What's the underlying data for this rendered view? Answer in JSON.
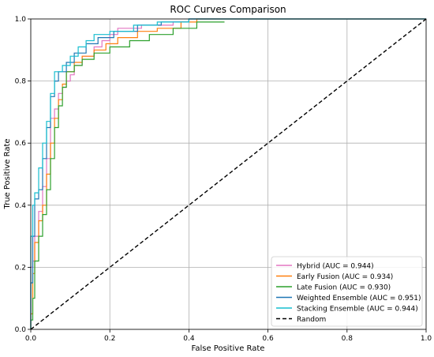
{
  "chart_data": {
    "type": "line",
    "title": "ROC Curves Comparison",
    "xlabel": "False Positive Rate",
    "ylabel": "True Positive Rate",
    "xlim": [
      0,
      1
    ],
    "ylim": [
      0,
      1
    ],
    "xticks": [
      "0.0",
      "0.2",
      "0.4",
      "0.6",
      "0.8",
      "1.0"
    ],
    "yticks": [
      "0.0",
      "0.2",
      "0.4",
      "0.6",
      "0.8",
      "1.0"
    ],
    "grid": true,
    "legend_position": "lower-right",
    "series": [
      {
        "name": "Hybrid (AUC = 0.944)",
        "color": "#e377c2",
        "points": [
          [
            0,
            0
          ],
          [
            0,
            0.2
          ],
          [
            0.005,
            0.2
          ],
          [
            0.005,
            0.22
          ],
          [
            0.01,
            0.22
          ],
          [
            0.01,
            0.3
          ],
          [
            0.02,
            0.3
          ],
          [
            0.02,
            0.38
          ],
          [
            0.03,
            0.38
          ],
          [
            0.03,
            0.46
          ],
          [
            0.04,
            0.46
          ],
          [
            0.04,
            0.55
          ],
          [
            0.05,
            0.55
          ],
          [
            0.05,
            0.68
          ],
          [
            0.06,
            0.68
          ],
          [
            0.06,
            0.71
          ],
          [
            0.07,
            0.71
          ],
          [
            0.07,
            0.76
          ],
          [
            0.08,
            0.76
          ],
          [
            0.08,
            0.78
          ],
          [
            0.09,
            0.78
          ],
          [
            0.09,
            0.8
          ],
          [
            0.1,
            0.8
          ],
          [
            0.1,
            0.82
          ],
          [
            0.11,
            0.82
          ],
          [
            0.11,
            0.85
          ],
          [
            0.13,
            0.85
          ],
          [
            0.13,
            0.88
          ],
          [
            0.16,
            0.88
          ],
          [
            0.16,
            0.91
          ],
          [
            0.18,
            0.91
          ],
          [
            0.18,
            0.93
          ],
          [
            0.2,
            0.93
          ],
          [
            0.2,
            0.95
          ],
          [
            0.22,
            0.95
          ],
          [
            0.22,
            0.97
          ],
          [
            0.28,
            0.97
          ],
          [
            0.28,
            0.98
          ],
          [
            0.36,
            0.98
          ],
          [
            0.36,
            0.99
          ],
          [
            0.4,
            0.99
          ],
          [
            0.4,
            1.0
          ],
          [
            1.0,
            1.0
          ]
        ]
      },
      {
        "name": "Early Fusion (AUC = 0.934)",
        "color": "#ff7f0e",
        "points": [
          [
            0,
            0
          ],
          [
            0,
            0.05
          ],
          [
            0.005,
            0.05
          ],
          [
            0.005,
            0.18
          ],
          [
            0.01,
            0.18
          ],
          [
            0.01,
            0.28
          ],
          [
            0.02,
            0.28
          ],
          [
            0.02,
            0.35
          ],
          [
            0.03,
            0.35
          ],
          [
            0.03,
            0.4
          ],
          [
            0.04,
            0.4
          ],
          [
            0.04,
            0.5
          ],
          [
            0.05,
            0.5
          ],
          [
            0.05,
            0.6
          ],
          [
            0.06,
            0.6
          ],
          [
            0.06,
            0.68
          ],
          [
            0.07,
            0.68
          ],
          [
            0.07,
            0.74
          ],
          [
            0.08,
            0.74
          ],
          [
            0.08,
            0.79
          ],
          [
            0.09,
            0.79
          ],
          [
            0.09,
            0.83
          ],
          [
            0.11,
            0.83
          ],
          [
            0.11,
            0.86
          ],
          [
            0.13,
            0.86
          ],
          [
            0.13,
            0.88
          ],
          [
            0.16,
            0.88
          ],
          [
            0.16,
            0.9
          ],
          [
            0.19,
            0.9
          ],
          [
            0.19,
            0.92
          ],
          [
            0.22,
            0.92
          ],
          [
            0.22,
            0.94
          ],
          [
            0.27,
            0.94
          ],
          [
            0.27,
            0.96
          ],
          [
            0.32,
            0.96
          ],
          [
            0.32,
            0.97
          ],
          [
            0.38,
            0.97
          ],
          [
            0.38,
            0.99
          ],
          [
            0.42,
            0.99
          ],
          [
            0.42,
            1.0
          ],
          [
            1.0,
            1.0
          ]
        ]
      },
      {
        "name": "Late Fusion (AUC = 0.930)",
        "color": "#2ca02c",
        "points": [
          [
            0,
            0
          ],
          [
            0,
            0.03
          ],
          [
            0.005,
            0.03
          ],
          [
            0.005,
            0.1
          ],
          [
            0.01,
            0.1
          ],
          [
            0.01,
            0.22
          ],
          [
            0.02,
            0.22
          ],
          [
            0.02,
            0.3
          ],
          [
            0.03,
            0.3
          ],
          [
            0.03,
            0.37
          ],
          [
            0.04,
            0.37
          ],
          [
            0.04,
            0.45
          ],
          [
            0.05,
            0.45
          ],
          [
            0.05,
            0.55
          ],
          [
            0.06,
            0.55
          ],
          [
            0.06,
            0.65
          ],
          [
            0.07,
            0.65
          ],
          [
            0.07,
            0.72
          ],
          [
            0.08,
            0.72
          ],
          [
            0.08,
            0.78
          ],
          [
            0.09,
            0.78
          ],
          [
            0.09,
            0.83
          ],
          [
            0.11,
            0.83
          ],
          [
            0.11,
            0.85
          ],
          [
            0.13,
            0.85
          ],
          [
            0.13,
            0.87
          ],
          [
            0.16,
            0.87
          ],
          [
            0.16,
            0.89
          ],
          [
            0.2,
            0.89
          ],
          [
            0.2,
            0.91
          ],
          [
            0.25,
            0.91
          ],
          [
            0.25,
            0.93
          ],
          [
            0.3,
            0.93
          ],
          [
            0.3,
            0.95
          ],
          [
            0.36,
            0.95
          ],
          [
            0.36,
            0.97
          ],
          [
            0.42,
            0.97
          ],
          [
            0.42,
            0.99
          ],
          [
            0.49,
            0.99
          ]
        ]
      },
      {
        "name": "Weighted Ensemble (AUC = 0.951)",
        "color": "#1f77b4",
        "points": [
          [
            0,
            0
          ],
          [
            0,
            0.15
          ],
          [
            0.005,
            0.15
          ],
          [
            0.005,
            0.3
          ],
          [
            0.01,
            0.3
          ],
          [
            0.01,
            0.42
          ],
          [
            0.02,
            0.42
          ],
          [
            0.02,
            0.45
          ],
          [
            0.03,
            0.45
          ],
          [
            0.03,
            0.55
          ],
          [
            0.04,
            0.55
          ],
          [
            0.04,
            0.65
          ],
          [
            0.05,
            0.65
          ],
          [
            0.05,
            0.75
          ],
          [
            0.06,
            0.75
          ],
          [
            0.06,
            0.8
          ],
          [
            0.07,
            0.8
          ],
          [
            0.07,
            0.83
          ],
          [
            0.09,
            0.83
          ],
          [
            0.09,
            0.86
          ],
          [
            0.11,
            0.86
          ],
          [
            0.11,
            0.89
          ],
          [
            0.14,
            0.89
          ],
          [
            0.14,
            0.92
          ],
          [
            0.17,
            0.92
          ],
          [
            0.17,
            0.94
          ],
          [
            0.21,
            0.94
          ],
          [
            0.21,
            0.96
          ],
          [
            0.27,
            0.96
          ],
          [
            0.27,
            0.98
          ],
          [
            0.33,
            0.98
          ],
          [
            0.33,
            0.99
          ],
          [
            0.4,
            0.99
          ],
          [
            0.4,
            1.0
          ],
          [
            1.0,
            1.0
          ]
        ]
      },
      {
        "name": "Stacking Ensemble (AUC = 0.944)",
        "color": "#17becf",
        "points": [
          [
            0,
            0
          ],
          [
            0,
            0.3
          ],
          [
            0.005,
            0.3
          ],
          [
            0.005,
            0.4
          ],
          [
            0.01,
            0.4
          ],
          [
            0.01,
            0.44
          ],
          [
            0.02,
            0.44
          ],
          [
            0.02,
            0.52
          ],
          [
            0.03,
            0.52
          ],
          [
            0.03,
            0.6
          ],
          [
            0.04,
            0.6
          ],
          [
            0.04,
            0.67
          ],
          [
            0.05,
            0.67
          ],
          [
            0.05,
            0.76
          ],
          [
            0.06,
            0.76
          ],
          [
            0.06,
            0.83
          ],
          [
            0.08,
            0.83
          ],
          [
            0.08,
            0.85
          ],
          [
            0.1,
            0.85
          ],
          [
            0.1,
            0.88
          ],
          [
            0.12,
            0.88
          ],
          [
            0.12,
            0.91
          ],
          [
            0.14,
            0.91
          ],
          [
            0.14,
            0.93
          ],
          [
            0.16,
            0.93
          ],
          [
            0.16,
            0.95
          ],
          [
            0.2,
            0.95
          ],
          [
            0.2,
            0.96
          ],
          [
            0.26,
            0.96
          ],
          [
            0.26,
            0.98
          ],
          [
            0.32,
            0.98
          ],
          [
            0.32,
            0.99
          ],
          [
            0.4,
            0.99
          ],
          [
            0.4,
            1.0
          ],
          [
            1.0,
            1.0
          ]
        ]
      },
      {
        "name": "Random",
        "color": "#000000",
        "dashed": true,
        "points": [
          [
            0,
            0
          ],
          [
            1,
            1
          ]
        ]
      }
    ]
  }
}
